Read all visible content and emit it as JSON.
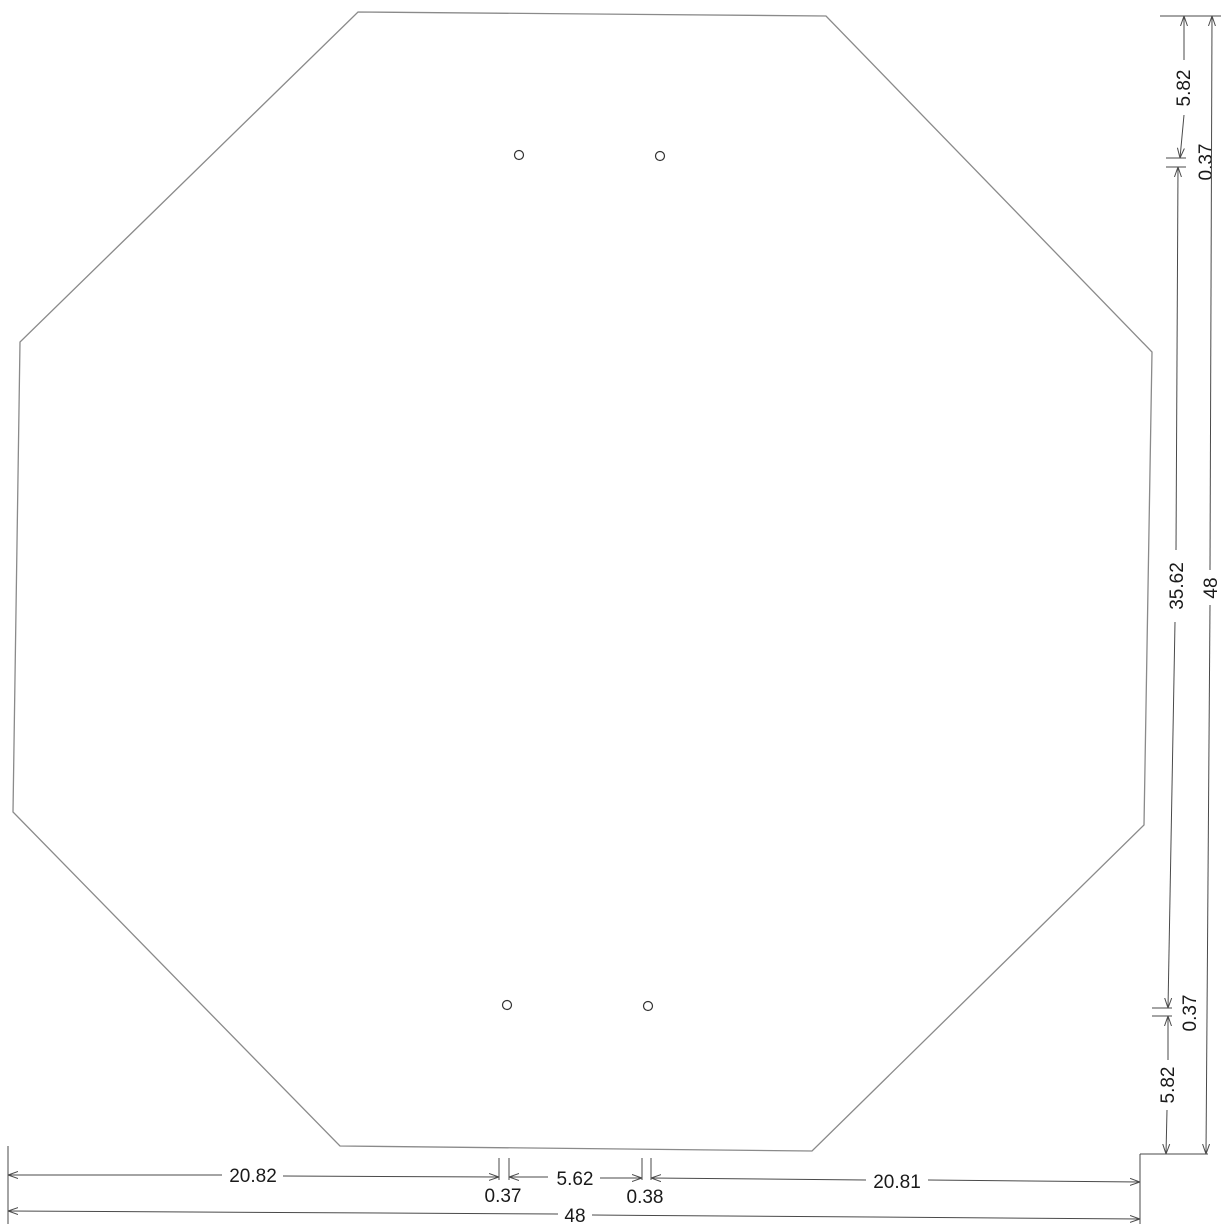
{
  "drawing": {
    "dimensions": {
      "bottom": {
        "left_segment": "20.82",
        "left_hole": "0.37",
        "center_span": "5.62",
        "right_hole": "0.38",
        "right_segment": "20.81",
        "overall_width": "48"
      },
      "right": {
        "top_segment": "5.82",
        "top_hole": "0.37",
        "center_span": "35.62",
        "bottom_hole": "0.37",
        "bottom_segment": "5.82",
        "overall_height": "48"
      }
    },
    "hole_count": 4
  }
}
